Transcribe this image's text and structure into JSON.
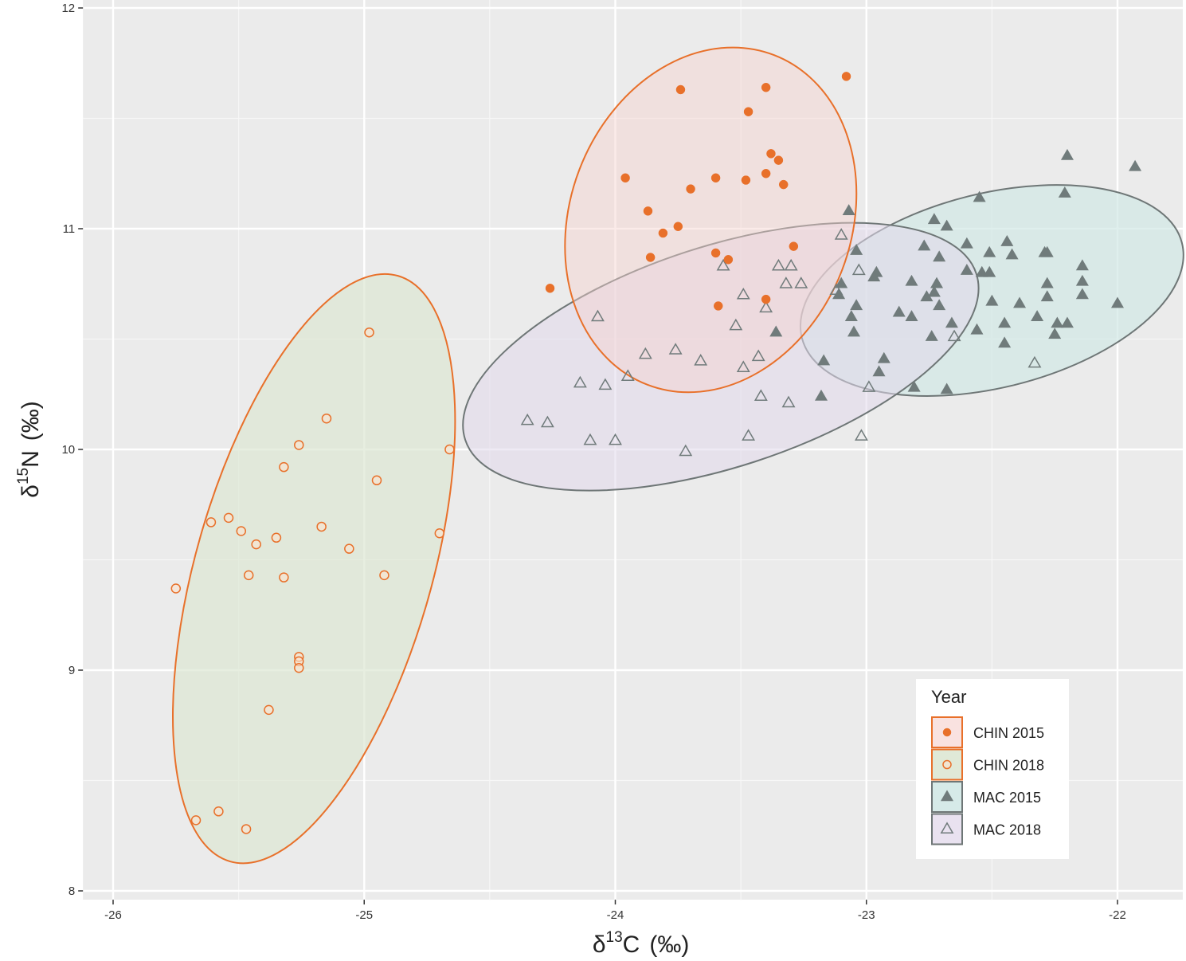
{
  "chart_data": {
    "type": "scatter",
    "title": "",
    "xlabel": {
      "prefix": "δ",
      "sup": "13",
      "main": "C",
      "unit": "(‰)"
    },
    "ylabel": {
      "prefix": "δ",
      "sup": "15",
      "main": "N",
      "unit": "(‰)"
    },
    "xlim": [
      -26.12,
      -21.74
    ],
    "ylim": [
      7.96,
      12.04
    ],
    "x_ticks": [
      -26,
      -25,
      -24,
      -23,
      -22
    ],
    "x_tick_labels": [
      "-26",
      "-25",
      "-24",
      "-23",
      "-22"
    ],
    "y_ticks": [
      8,
      9,
      10,
      11,
      12
    ],
    "y_tick_labels": [
      "8",
      "9",
      "10",
      "11",
      "12"
    ],
    "grid": true,
    "background": "#ebebeb",
    "legend": {
      "title": "Year",
      "position": "bottom-right",
      "entries": [
        "CHIN 2015",
        "CHIN 2018",
        "MAC 2015",
        "MAC 2018"
      ]
    },
    "series": [
      {
        "name": "CHIN 2015",
        "marker": "filled-circle",
        "color": "#e8702a",
        "ellipse": {
          "stroke": "#e8702a",
          "fill": "#f6d3cf",
          "fill_opacity": 0.45,
          "cx": -23.62,
          "cy": 11.04,
          "rx": 0.56,
          "ry": 0.8,
          "angle_deg": 21
        },
        "points": [
          [
            -23.08,
            11.69
          ],
          [
            -23.74,
            11.63
          ],
          [
            -23.4,
            11.64
          ],
          [
            -23.47,
            11.53
          ],
          [
            -23.38,
            11.34
          ],
          [
            -23.35,
            11.31
          ],
          [
            -23.96,
            11.23
          ],
          [
            -23.6,
            11.23
          ],
          [
            -23.48,
            11.22
          ],
          [
            -23.7,
            11.18
          ],
          [
            -23.4,
            11.25
          ],
          [
            -23.33,
            11.2
          ],
          [
            -23.87,
            11.08
          ],
          [
            -23.75,
            11.01
          ],
          [
            -23.81,
            10.98
          ],
          [
            -23.29,
            10.92
          ],
          [
            -23.6,
            10.89
          ],
          [
            -23.55,
            10.86
          ],
          [
            -23.86,
            10.87
          ],
          [
            -24.26,
            10.73
          ],
          [
            -23.4,
            10.68
          ],
          [
            -23.59,
            10.65
          ]
        ]
      },
      {
        "name": "CHIN 2018",
        "marker": "open-circle",
        "color": "#e8702a",
        "ellipse": {
          "stroke": "#e8702a",
          "fill": "#dde7d3",
          "fill_opacity": 0.7,
          "cx": -25.2,
          "cy": 9.46,
          "rx": 0.47,
          "ry": 1.38,
          "angle_deg": 16
        },
        "points": [
          [
            -24.98,
            10.53
          ],
          [
            -25.15,
            10.14
          ],
          [
            -25.26,
            10.02
          ],
          [
            -25.32,
            9.92
          ],
          [
            -24.95,
            9.86
          ],
          [
            -24.66,
            10.0
          ],
          [
            -25.61,
            9.67
          ],
          [
            -25.54,
            9.69
          ],
          [
            -25.49,
            9.63
          ],
          [
            -25.43,
            9.57
          ],
          [
            -25.35,
            9.6
          ],
          [
            -25.17,
            9.65
          ],
          [
            -25.06,
            9.55
          ],
          [
            -24.7,
            9.62
          ],
          [
            -25.46,
            9.43
          ],
          [
            -25.32,
            9.42
          ],
          [
            -24.92,
            9.43
          ],
          [
            -25.75,
            9.37
          ],
          [
            -25.26,
            9.06
          ],
          [
            -25.26,
            9.04
          ],
          [
            -25.26,
            9.01
          ],
          [
            -25.38,
            8.82
          ],
          [
            -25.67,
            8.32
          ],
          [
            -25.58,
            8.36
          ],
          [
            -25.47,
            8.28
          ]
        ]
      },
      {
        "name": "MAC 2015",
        "marker": "filled-triangle",
        "color": "#707b7b",
        "ellipse": {
          "stroke": "#6e7676",
          "fill": "#d2e8e6",
          "fill_opacity": 0.7,
          "cx": -22.5,
          "cy": 10.72,
          "rx": 0.78,
          "ry": 0.44,
          "angle_deg": -14
        },
        "points": [
          [
            -22.2,
            11.33
          ],
          [
            -21.93,
            11.28
          ],
          [
            -22.21,
            11.16
          ],
          [
            -22.55,
            11.14
          ],
          [
            -23.07,
            11.08
          ],
          [
            -22.73,
            11.04
          ],
          [
            -22.68,
            11.01
          ],
          [
            -22.6,
            10.93
          ],
          [
            -22.77,
            10.92
          ],
          [
            -22.44,
            10.94
          ],
          [
            -22.42,
            10.88
          ],
          [
            -22.51,
            10.89
          ],
          [
            -22.29,
            10.89
          ],
          [
            -22.28,
            10.89
          ],
          [
            -23.04,
            10.9
          ],
          [
            -22.71,
            10.87
          ],
          [
            -22.14,
            10.83
          ],
          [
            -22.54,
            10.8
          ],
          [
            -22.6,
            10.81
          ],
          [
            -22.96,
            10.8
          ],
          [
            -22.97,
            10.78
          ],
          [
            -23.1,
            10.75
          ],
          [
            -22.72,
            10.75
          ],
          [
            -22.82,
            10.76
          ],
          [
            -22.14,
            10.76
          ],
          [
            -22.28,
            10.75
          ],
          [
            -22.51,
            10.8
          ],
          [
            -23.11,
            10.7
          ],
          [
            -22.73,
            10.71
          ],
          [
            -22.76,
            10.69
          ],
          [
            -22.28,
            10.69
          ],
          [
            -22.14,
            10.7
          ],
          [
            -22.5,
            10.67
          ],
          [
            -22.39,
            10.66
          ],
          [
            -22.71,
            10.65
          ],
          [
            -22.32,
            10.6
          ],
          [
            -22.87,
            10.62
          ],
          [
            -22.82,
            10.6
          ],
          [
            -22.45,
            10.57
          ],
          [
            -23.06,
            10.6
          ],
          [
            -22.66,
            10.57
          ],
          [
            -22.24,
            10.57
          ],
          [
            -22.2,
            10.57
          ],
          [
            -23.05,
            10.53
          ],
          [
            -22.56,
            10.54
          ],
          [
            -22.25,
            10.52
          ],
          [
            -23.36,
            10.53
          ],
          [
            -22.74,
            10.51
          ],
          [
            -22.45,
            10.48
          ],
          [
            -22.93,
            10.41
          ],
          [
            -23.17,
            10.4
          ],
          [
            -22.95,
            10.35
          ],
          [
            -22.0,
            10.66
          ],
          [
            -23.18,
            10.24
          ],
          [
            -22.81,
            10.28
          ],
          [
            -22.68,
            10.27
          ],
          [
            -23.04,
            10.65
          ]
        ]
      },
      {
        "name": "MAC 2018",
        "marker": "open-triangle",
        "color": "#707b7b",
        "ellipse": {
          "stroke": "#6e7676",
          "fill": "#e2d8eb",
          "fill_opacity": 0.55,
          "cx": -23.58,
          "cy": 10.42,
          "rx": 1.07,
          "ry": 0.5,
          "angle_deg": -18
        },
        "points": [
          [
            -23.1,
            10.97
          ],
          [
            -23.03,
            10.81
          ],
          [
            -23.57,
            10.83
          ],
          [
            -23.35,
            10.83
          ],
          [
            -23.3,
            10.83
          ],
          [
            -23.32,
            10.75
          ],
          [
            -23.26,
            10.75
          ],
          [
            -23.12,
            10.72
          ],
          [
            -23.49,
            10.7
          ],
          [
            -23.4,
            10.64
          ],
          [
            -24.07,
            10.6
          ],
          [
            -23.52,
            10.56
          ],
          [
            -23.43,
            10.42
          ],
          [
            -23.88,
            10.43
          ],
          [
            -23.76,
            10.45
          ],
          [
            -23.66,
            10.4
          ],
          [
            -23.49,
            10.37
          ],
          [
            -23.95,
            10.33
          ],
          [
            -24.14,
            10.3
          ],
          [
            -24.04,
            10.29
          ],
          [
            -23.42,
            10.24
          ],
          [
            -23.31,
            10.21
          ],
          [
            -22.99,
            10.28
          ],
          [
            -24.35,
            10.13
          ],
          [
            -24.27,
            10.12
          ],
          [
            -24.1,
            10.04
          ],
          [
            -24.0,
            10.04
          ],
          [
            -23.47,
            10.06
          ],
          [
            -23.02,
            10.06
          ],
          [
            -23.72,
            9.99
          ],
          [
            -22.65,
            10.51
          ],
          [
            -22.33,
            10.39
          ]
        ]
      }
    ]
  }
}
